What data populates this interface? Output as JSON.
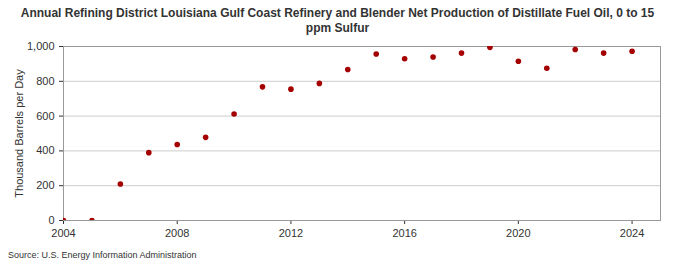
{
  "chart_data": {
    "type": "scatter",
    "title": "Annual Refining District Louisiana Gulf Coast Refinery and Blender Net Production of Distillate Fuel Oil, 0 to 15 ppm Sulfur",
    "y_label": "Thousand Barrels per Day",
    "source": "Source: U.S. Energy Information Administration",
    "x": [
      2004,
      2005,
      2006,
      2007,
      2008,
      2009,
      2010,
      2011,
      2012,
      2013,
      2014,
      2015,
      2016,
      2017,
      2018,
      2019,
      2020,
      2021,
      2022,
      2023,
      2024
    ],
    "values": [
      0,
      0,
      210,
      390,
      437,
      478,
      612,
      768,
      755,
      788,
      868,
      957,
      930,
      940,
      962,
      995,
      915,
      875,
      983,
      962,
      973
    ],
    "color": "#a50000",
    "marker": "circle",
    "xlim": [
      2004,
      2025
    ],
    "xticks": [
      2004,
      2008,
      2012,
      2016,
      2020,
      2024
    ],
    "ylim": [
      0,
      1000
    ],
    "yticks": [
      0,
      200,
      400,
      600,
      800,
      {
        "value": 1000,
        "label": "1,000"
      }
    ],
    "grid": true
  }
}
